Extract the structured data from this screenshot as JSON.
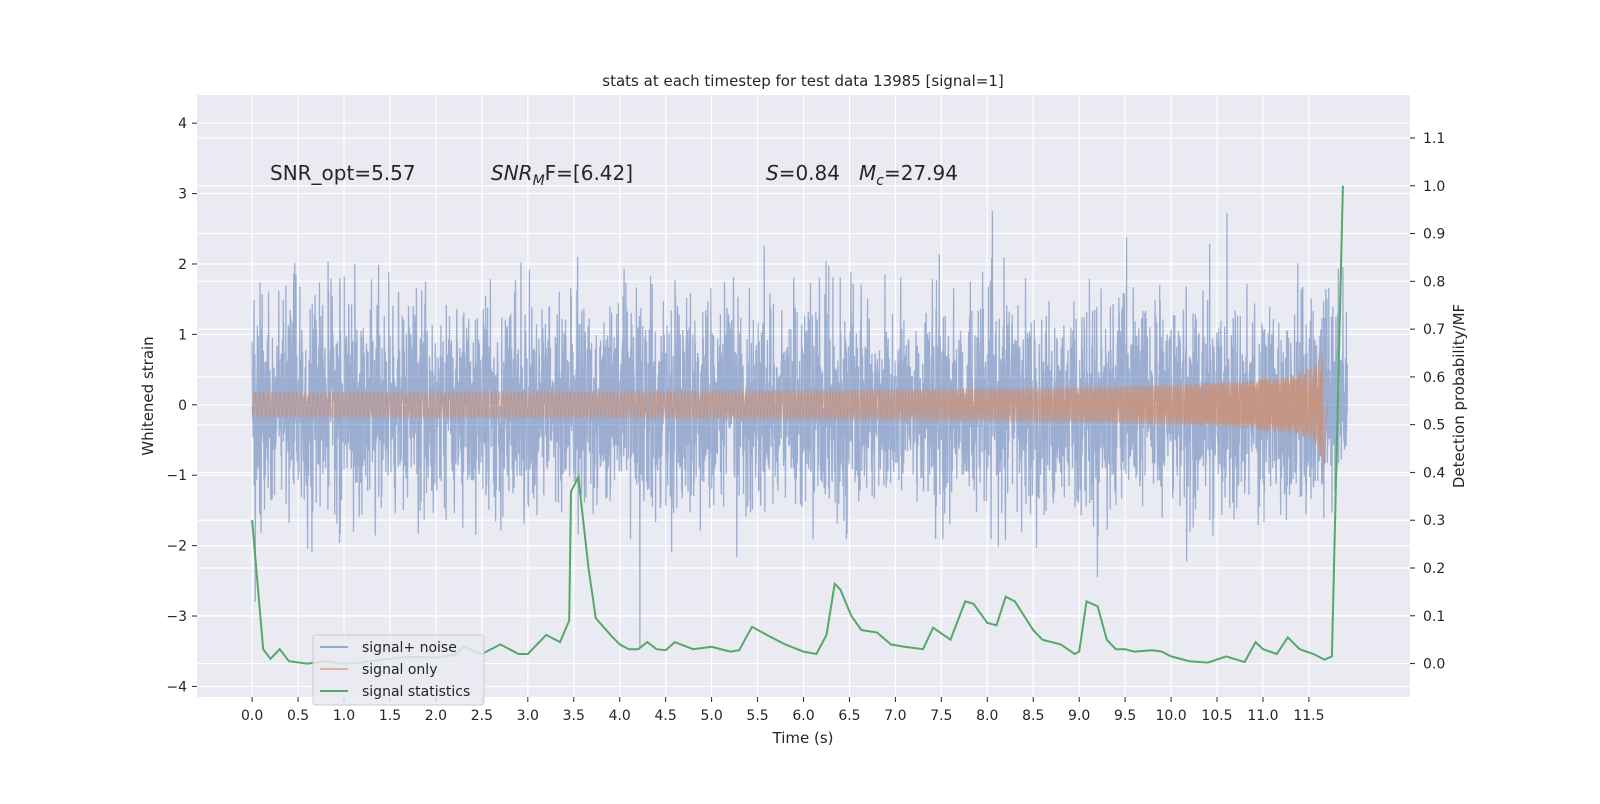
{
  "chart_data": {
    "type": "line",
    "title": "stats at each timestep for test data 13985 [signal=1]",
    "xlabel": "Time (s)",
    "ylabel": "Whitened strain",
    "ylabel_right": "Detection probability/MF",
    "xlim": [
      -0.6,
      12.6
    ],
    "ylim": [
      -4.15,
      4.4
    ],
    "ylim_right": [
      -0.07,
      1.19
    ],
    "x_ticks": [
      "0.0",
      "0.5",
      "1.0",
      "1.5",
      "2.0",
      "2.5",
      "3.0",
      "3.5",
      "4.0",
      "4.5",
      "5.0",
      "5.5",
      "6.0",
      "6.5",
      "7.0",
      "7.5",
      "8.0",
      "8.5",
      "9.0",
      "9.5",
      "10.0",
      "10.5",
      "11.0",
      "11.5"
    ],
    "x_tick_values": [
      0,
      0.5,
      1,
      1.5,
      2,
      2.5,
      3,
      3.5,
      4,
      4.5,
      5,
      5.5,
      6,
      6.5,
      7,
      7.5,
      8,
      8.5,
      9,
      9.5,
      10,
      10.5,
      11,
      11.5
    ],
    "y_ticks": [
      "−4",
      "−3",
      "−2",
      "−1",
      "0",
      "1",
      "2",
      "3",
      "4"
    ],
    "y_tick_values": [
      -4,
      -3,
      -2,
      -1,
      0,
      1,
      2,
      3,
      4
    ],
    "y_ticks_right": [
      "0.0",
      "0.1",
      "0.2",
      "0.3",
      "0.4",
      "0.5",
      "0.6",
      "0.7",
      "0.8",
      "0.9",
      "1.0",
      "1.1"
    ],
    "y_tick_values_right": [
      0,
      0.1,
      0.2,
      0.3,
      0.4,
      0.5,
      0.6,
      0.7,
      0.8,
      0.9,
      1.0,
      1.1
    ],
    "grid": true,
    "legend_position": "lower-left",
    "annotations": {
      "snr_opt": "SNR_opt=5.57",
      "snr_mf_label": "SNR",
      "snr_mf_sub": "M",
      "snr_mf_rest": "F=[6.42]",
      "s_label": "S",
      "s_value": "=0.84",
      "mc_label": "M",
      "mc_sub": "c",
      "mc_value": "=27.94"
    },
    "series": [
      {
        "name": "signal+ noise",
        "color": "#4c72b0",
        "axis": "left",
        "t_range": [
          0,
          11.92
        ],
        "noise_std": 0.72,
        "clip": [
          -3.8,
          4.1
        ]
      },
      {
        "name": "signal only",
        "color": "#dd8452",
        "axis": "left",
        "t_range": [
          0,
          11.7
        ],
        "peak_amplitude": 1.1,
        "peak_time": 11.66
      },
      {
        "name": "signal statistics",
        "color": "#55a868",
        "axis": "right",
        "t": [
          0,
          0.12,
          0.2,
          0.3,
          0.4,
          0.6,
          0.8,
          1.0,
          1.2,
          1.4,
          1.6,
          1.8,
          2.0,
          2.2,
          2.3,
          2.5,
          2.7,
          2.9,
          3.0,
          3.2,
          3.35,
          3.45,
          3.47,
          3.55,
          3.66,
          3.74,
          3.9,
          4.0,
          4.1,
          4.2,
          4.3,
          4.4,
          4.5,
          4.6,
          4.8,
          5.0,
          5.2,
          5.3,
          5.44,
          5.6,
          5.8,
          6.0,
          6.14,
          6.25,
          6.34,
          6.4,
          6.52,
          6.63,
          6.8,
          6.95,
          7.1,
          7.3,
          7.41,
          7.6,
          7.76,
          7.85,
          8.0,
          8.1,
          8.2,
          8.3,
          8.5,
          8.6,
          8.8,
          8.95,
          9.0,
          9.08,
          9.2,
          9.3,
          9.4,
          9.5,
          9.6,
          9.8,
          9.9,
          10.0,
          10.2,
          10.4,
          10.6,
          10.8,
          10.92,
          11.0,
          11.15,
          11.27,
          11.4,
          11.55,
          11.67,
          11.75,
          11.87
        ],
        "v": [
          0.3,
          0.03,
          0.01,
          0.03,
          0.005,
          0.0,
          0.005,
          0.0,
          0.002,
          0.008,
          0.012,
          0.014,
          0.012,
          0.018,
          0.035,
          0.02,
          0.04,
          0.02,
          0.02,
          0.06,
          0.045,
          0.09,
          0.36,
          0.39,
          0.2,
          0.095,
          0.06,
          0.04,
          0.03,
          0.03,
          0.045,
          0.03,
          0.028,
          0.045,
          0.03,
          0.035,
          0.025,
          0.028,
          0.077,
          0.06,
          0.04,
          0.025,
          0.02,
          0.06,
          0.167,
          0.155,
          0.1,
          0.07,
          0.065,
          0.04,
          0.035,
          0.03,
          0.075,
          0.05,
          0.13,
          0.125,
          0.085,
          0.08,
          0.14,
          0.13,
          0.07,
          0.05,
          0.04,
          0.02,
          0.025,
          0.13,
          0.12,
          0.05,
          0.03,
          0.03,
          0.025,
          0.028,
          0.025,
          0.015,
          0.005,
          0.002,
          0.015,
          0.003,
          0.045,
          0.03,
          0.02,
          0.055,
          0.03,
          0.02,
          0.008,
          0.015,
          1.0
        ]
      }
    ]
  },
  "legend": {
    "items": [
      "signal+ noise",
      "signal only",
      "signal statistics"
    ]
  }
}
